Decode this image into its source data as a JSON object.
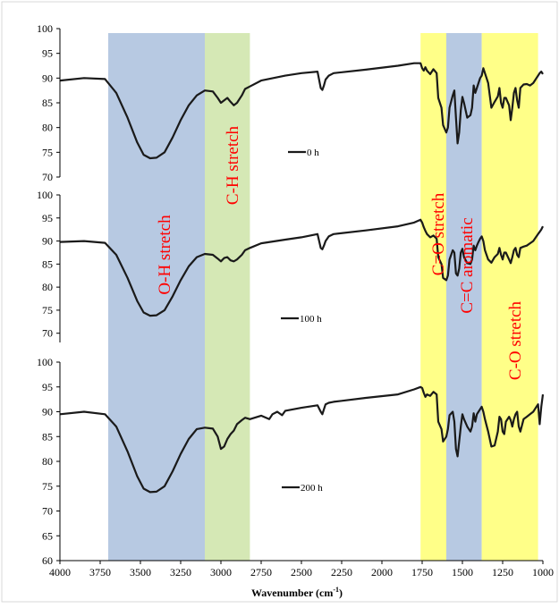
{
  "chart_data": {
    "type": "line",
    "xlabel": "Wavenumber (cm",
    "xlabel_sup": "-1",
    "xlabel_tail": ")",
    "xlim": [
      4000,
      1000
    ],
    "x_reversed": true,
    "x_ticks": [
      "4000",
      "3750",
      "3500",
      "3250",
      "3000",
      "2750",
      "2500",
      "2250",
      "2000",
      "1750",
      "1500",
      "1250",
      "1000"
    ],
    "colors": {
      "line": "#1a1a1a",
      "label": "#ff0000",
      "blue_band": "#b7c9e2",
      "green_band": "#d5e8b5",
      "yellow_band": "#ffff88",
      "axis": "#000000",
      "frame": "#d9d9d9"
    },
    "bands": [
      {
        "label": "O-H stretch",
        "x_from": 3700,
        "x_to": 3100,
        "color": "blue"
      },
      {
        "label": "C-H stretch",
        "x_from": 3100,
        "x_to": 2820,
        "color": "green"
      },
      {
        "label": "C=O stretch",
        "x_from": 1760,
        "x_to": 1600,
        "color": "yellow"
      },
      {
        "label": "C=C aromatic",
        "x_from": 1600,
        "x_to": 1380,
        "color": "blue"
      },
      {
        "label": "C-O stretch",
        "x_from": 1380,
        "x_to": 1030,
        "color": "yellow"
      }
    ],
    "panels": [
      {
        "legend": "0 h",
        "ylim": [
          70,
          100
        ],
        "y_ticks": [
          "100",
          "95",
          "90",
          "85",
          "80",
          "75",
          "70"
        ],
        "x": [
          4000,
          3850,
          3720,
          3650,
          3580,
          3520,
          3480,
          3440,
          3400,
          3350,
          3300,
          3250,
          3200,
          3150,
          3100,
          3050,
          3020,
          3000,
          2980,
          2960,
          2940,
          2920,
          2900,
          2870,
          2850,
          2820,
          2750,
          2600,
          2500,
          2400,
          2380,
          2370,
          2360,
          2350,
          2330,
          2300,
          2100,
          1900,
          1800,
          1760,
          1750,
          1740,
          1730,
          1720,
          1700,
          1680,
          1660,
          1650,
          1630,
          1620,
          1600,
          1590,
          1580,
          1560,
          1550,
          1540,
          1530,
          1520,
          1510,
          1500,
          1490,
          1470,
          1450,
          1440,
          1430,
          1420,
          1410,
          1400,
          1390,
          1380,
          1370,
          1360,
          1340,
          1320,
          1300,
          1280,
          1270,
          1260,
          1250,
          1240,
          1230,
          1210,
          1200,
          1190,
          1180,
          1170,
          1160,
          1150,
          1140,
          1120,
          1100,
          1080,
          1060,
          1050,
          1040,
          1030,
          1020,
          1010,
          1000
        ],
        "y": [
          89.5,
          90,
          89.8,
          87,
          82,
          77,
          74.5,
          73.8,
          73.9,
          75,
          78,
          81.5,
          84.5,
          86.5,
          87.5,
          87.3,
          86,
          85,
          85.5,
          86,
          85.2,
          84.5,
          85,
          86.5,
          87.8,
          88.3,
          89.5,
          90.5,
          91,
          91.3,
          88,
          87.6,
          88.5,
          89.7,
          90.5,
          91,
          91.7,
          92.5,
          93,
          93,
          92,
          91.5,
          92.2,
          91.5,
          90.8,
          91.8,
          91,
          86,
          84,
          80.5,
          79,
          80,
          84,
          86.5,
          87.5,
          82,
          76.8,
          79,
          83.5,
          86.2,
          85,
          82,
          82.5,
          84,
          88.5,
          87,
          88,
          89,
          90,
          90.5,
          92,
          91,
          89,
          84,
          85.2,
          86.3,
          88,
          85,
          84,
          86,
          86,
          84.5,
          81.5,
          84,
          87,
          88,
          85.5,
          84,
          88,
          88.7,
          88.8,
          88.5,
          89,
          89.5,
          90,
          90.5,
          91,
          91.3,
          90.8
        ]
      },
      {
        "legend": "100 h",
        "ylim": [
          68,
          100
        ],
        "y_ticks": [
          "100",
          "95",
          "90",
          "85",
          "80",
          "75",
          "70"
        ],
        "x": [
          4000,
          3850,
          3720,
          3650,
          3580,
          3520,
          3480,
          3440,
          3400,
          3350,
          3300,
          3250,
          3200,
          3150,
          3100,
          3050,
          3020,
          3000,
          2980,
          2960,
          2940,
          2920,
          2900,
          2870,
          2850,
          2820,
          2750,
          2600,
          2500,
          2400,
          2380,
          2370,
          2360,
          2350,
          2330,
          2300,
          2100,
          1900,
          1800,
          1760,
          1750,
          1740,
          1730,
          1720,
          1700,
          1680,
          1660,
          1650,
          1630,
          1620,
          1600,
          1590,
          1580,
          1560,
          1550,
          1540,
          1530,
          1520,
          1510,
          1500,
          1490,
          1470,
          1450,
          1440,
          1430,
          1420,
          1410,
          1400,
          1390,
          1380,
          1370,
          1360,
          1340,
          1320,
          1300,
          1280,
          1270,
          1260,
          1250,
          1240,
          1230,
          1210,
          1200,
          1190,
          1180,
          1170,
          1160,
          1150,
          1140,
          1120,
          1100,
          1080,
          1060,
          1050,
          1040,
          1030,
          1020,
          1010,
          1000
        ],
        "y": [
          89.8,
          90,
          89.6,
          87,
          82,
          77,
          74.5,
          73.8,
          73.9,
          75,
          78,
          81.5,
          84.5,
          86.5,
          87.2,
          87,
          86.2,
          85.6,
          86.3,
          86.5,
          85.8,
          85.6,
          86,
          87,
          88,
          88.5,
          89.5,
          90.3,
          90.8,
          91.5,
          88.5,
          88.2,
          89,
          90,
          91,
          91.5,
          92.3,
          93.2,
          94,
          94.6,
          94,
          93,
          92.2,
          91.5,
          90.8,
          91.2,
          90.5,
          86.5,
          85,
          82,
          81.5,
          82.5,
          86,
          88,
          87.5,
          83,
          82.5,
          84,
          87.5,
          88.3,
          86.5,
          85.2,
          85,
          86,
          89,
          88,
          89,
          89.8,
          90.5,
          91,
          90,
          88,
          86,
          85.3,
          86.5,
          87.2,
          88.5,
          87,
          86,
          87.5,
          87.5,
          86,
          85.2,
          86.5,
          88,
          88.5,
          87,
          86.5,
          88.5,
          88.8,
          89,
          89.5,
          90,
          90.5,
          91,
          91.5,
          92,
          92.5,
          93.2
        ]
      },
      {
        "legend": "200 h",
        "ylim": [
          60,
          100
        ],
        "y_ticks": [
          "100",
          "95",
          "90",
          "85",
          "80",
          "75",
          "70",
          "65",
          "60"
        ],
        "x": [
          4000,
          3850,
          3720,
          3650,
          3580,
          3520,
          3480,
          3440,
          3400,
          3350,
          3300,
          3250,
          3200,
          3150,
          3100,
          3050,
          3020,
          3000,
          2980,
          2960,
          2940,
          2920,
          2900,
          2870,
          2850,
          2820,
          2750,
          2700,
          2680,
          2650,
          2620,
          2600,
          2500,
          2400,
          2380,
          2370,
          2360,
          2350,
          2330,
          2300,
          2100,
          1900,
          1800,
          1760,
          1750,
          1740,
          1730,
          1720,
          1700,
          1680,
          1660,
          1650,
          1630,
          1620,
          1600,
          1590,
          1580,
          1560,
          1550,
          1540,
          1530,
          1520,
          1510,
          1500,
          1490,
          1470,
          1450,
          1440,
          1430,
          1420,
          1410,
          1400,
          1390,
          1380,
          1370,
          1360,
          1340,
          1320,
          1300,
          1280,
          1270,
          1260,
          1250,
          1240,
          1230,
          1210,
          1200,
          1190,
          1180,
          1170,
          1160,
          1150,
          1140,
          1120,
          1100,
          1080,
          1060,
          1050,
          1040,
          1030,
          1020,
          1010,
          1000
        ],
        "y": [
          89.5,
          90,
          89.5,
          87,
          82,
          77,
          74.5,
          73.8,
          73.9,
          75,
          78,
          81.5,
          84.5,
          86.5,
          86.8,
          86.6,
          85,
          82.5,
          83,
          84.5,
          85.5,
          86.2,
          87.5,
          88.3,
          88.8,
          88.5,
          89.2,
          88.5,
          89.5,
          90,
          89.3,
          90.2,
          90.8,
          91.3,
          90,
          89.5,
          90.5,
          91.5,
          91.8,
          92,
          92.8,
          93.5,
          94.5,
          95,
          94.8,
          93.8,
          93,
          93.5,
          93.2,
          94,
          93.5,
          88,
          86.5,
          84,
          85,
          86.5,
          89.3,
          90,
          88,
          82.5,
          81,
          84,
          87,
          89.5,
          88.5,
          87,
          86,
          87,
          89.7,
          88,
          89.5,
          90,
          90.5,
          91,
          90,
          88.5,
          86,
          83,
          83.2,
          86,
          89,
          88.5,
          86,
          85.5,
          88,
          89,
          88.3,
          87,
          88.5,
          89.5,
          90,
          87,
          86,
          88.5,
          89,
          89.5,
          90,
          90.5,
          91,
          91.5,
          87.5,
          91,
          93.5
        ]
      }
    ]
  }
}
